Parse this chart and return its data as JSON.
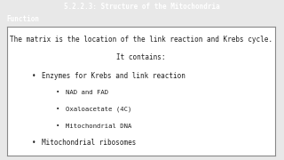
{
  "title": "5.2.2.3: Structure of the Mitochondria",
  "title_bg": "#1a1a1a",
  "title_color": "#ffffff",
  "title_fontsize": 5.5,
  "badge_text": "Function",
  "badge_bg": "#7b2fbe",
  "badge_color": "#ffffff",
  "badge_fontsize": 5.5,
  "body_bg": "#e8e8e8",
  "box_bg": "#ffffff",
  "box_edge": "#888888",
  "line1": "The matrix is the location of the link reaction and Krebs cycle.",
  "line2": "It contains:",
  "bullet1": "Enzymes for Krebs and link reaction",
  "sub_bullets": [
    "NAD and FAD",
    "Oxaloacetate (4C)",
    "Mitochondrial DNA"
  ],
  "bullet2": "Mitochondrial ribosomes",
  "text_color": "#222222",
  "font": "monospace"
}
